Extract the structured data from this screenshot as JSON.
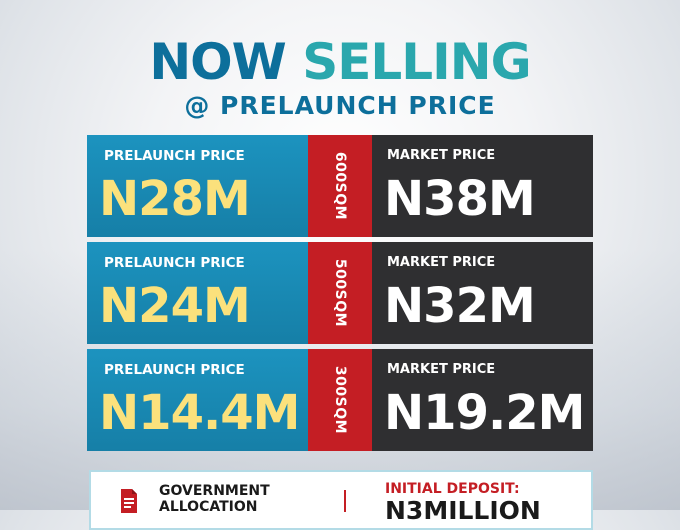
{
  "header": {
    "word1": "NOW",
    "word2": "SELLING",
    "subtitle": "@ PRELAUNCH PRICE"
  },
  "rows": [
    {
      "prelaunch_label": "PRELAUNCH PRICE",
      "prelaunch_price": "N28M",
      "size": "600SQM",
      "market_label": "MARKET PRICE",
      "market_price": "N38M"
    },
    {
      "prelaunch_label": "PRELAUNCH PRICE",
      "prelaunch_price": "N24M",
      "size": "500SQM",
      "market_label": "MARKET PRICE",
      "market_price": "N32M"
    },
    {
      "prelaunch_label": "PRELAUNCH PRICE",
      "prelaunch_price": "N14.4M",
      "size": "300SQM",
      "market_label": "MARKET PRICE",
      "market_price": "N19.2M"
    }
  ],
  "info": {
    "icon": "document-icon",
    "allocation_line1": "GOVERNMENT",
    "allocation_line2": "ALLOCATION",
    "deposit_label": "INITIAL DEPOSIT:",
    "deposit_value": "N3MILLION"
  },
  "colors": {
    "brand_blue": "#0d6f9b",
    "brand_teal": "#2aa7ad",
    "panel_blue": "#1c93bf",
    "accent_red": "#c41e24",
    "panel_dark": "#2f2f31",
    "price_yellow": "#fbe17c"
  }
}
